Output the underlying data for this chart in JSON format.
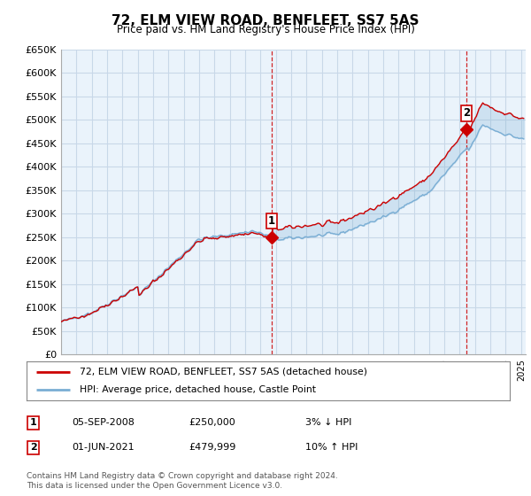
{
  "title": "72, ELM VIEW ROAD, BENFLEET, SS7 5AS",
  "subtitle": "Price paid vs. HM Land Registry's House Price Index (HPI)",
  "legend_line1": "72, ELM VIEW ROAD, BENFLEET, SS7 5AS (detached house)",
  "legend_line2": "HPI: Average price, detached house, Castle Point",
  "annotation1": {
    "label": "1",
    "date": "05-SEP-2008",
    "price": "£250,000",
    "pct": "3% ↓ HPI"
  },
  "annotation2": {
    "label": "2",
    "date": "01-JUN-2021",
    "price": "£479,999",
    "pct": "10% ↑ HPI"
  },
  "footer": "Contains HM Land Registry data © Crown copyright and database right 2024.\nThis data is licensed under the Open Government Licence v3.0.",
  "ylim": [
    0,
    650000
  ],
  "yticks": [
    0,
    50000,
    100000,
    150000,
    200000,
    250000,
    300000,
    350000,
    400000,
    450000,
    500000,
    550000,
    600000,
    650000
  ],
  "ytick_labels": [
    "£0",
    "£50K",
    "£100K",
    "£150K",
    "£200K",
    "£250K",
    "£300K",
    "£350K",
    "£400K",
    "£450K",
    "£500K",
    "£550K",
    "£600K",
    "£650K"
  ],
  "hpi_color": "#7aaed4",
  "price_color": "#cc0000",
  "fill_color": "#ddeeff",
  "annotation_color": "#cc0000",
  "background_color": "#ffffff",
  "plot_bg_color": "#eaf3fb",
  "grid_color": "#c8d8e8",
  "marker1_x": 2008.75,
  "marker1_y": 250000,
  "marker2_x": 2021.42,
  "marker2_y": 479999,
  "vline1_x": 2008.75,
  "vline2_x": 2021.42,
  "xlim_left": 1995.0,
  "xlim_right": 2025.3
}
